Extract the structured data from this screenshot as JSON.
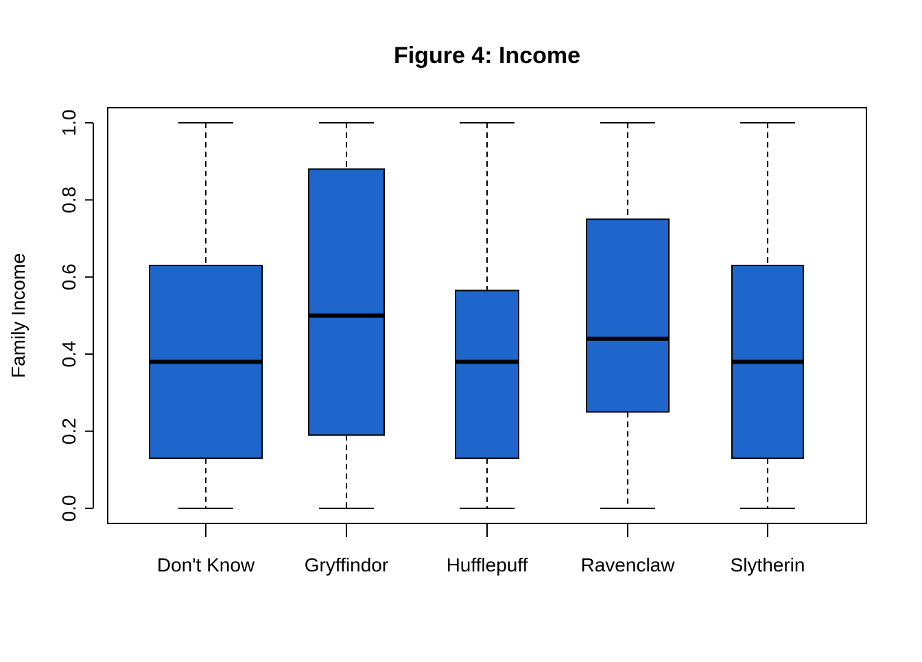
{
  "chart_data": {
    "type": "boxplot",
    "title": "Figure 4: Income",
    "xlabel": "",
    "ylabel": "Family Income",
    "ylim": [
      0.0,
      1.0
    ],
    "yticks": [
      "0.0",
      "0.2",
      "0.4",
      "0.6",
      "0.8",
      "1.0"
    ],
    "ytick_values": [
      0.0,
      0.2,
      0.4,
      0.6,
      0.8,
      1.0
    ],
    "grid": false,
    "legend": "none",
    "box_color": "#1e66cc",
    "categories": [
      "Don't Know",
      "Gryffindor",
      "Hufflepuff",
      "Ravenclaw",
      "Slytherin"
    ],
    "boxes": [
      {
        "category": "Don't Know",
        "min": 0.0,
        "q1": 0.13,
        "median": 0.38,
        "q3": 0.63,
        "max": 1.0
      },
      {
        "category": "Gryffindor",
        "min": 0.0,
        "q1": 0.19,
        "median": 0.5,
        "q3": 0.88,
        "max": 1.0
      },
      {
        "category": "Hufflepuff",
        "min": 0.0,
        "q1": 0.13,
        "median": 0.38,
        "q3": 0.565,
        "max": 1.0
      },
      {
        "category": "Ravenclaw",
        "min": 0.0,
        "q1": 0.25,
        "median": 0.44,
        "q3": 0.75,
        "max": 1.0
      },
      {
        "category": "Slytherin",
        "min": 0.0,
        "q1": 0.13,
        "median": 0.38,
        "q3": 0.63,
        "max": 1.0
      }
    ]
  }
}
